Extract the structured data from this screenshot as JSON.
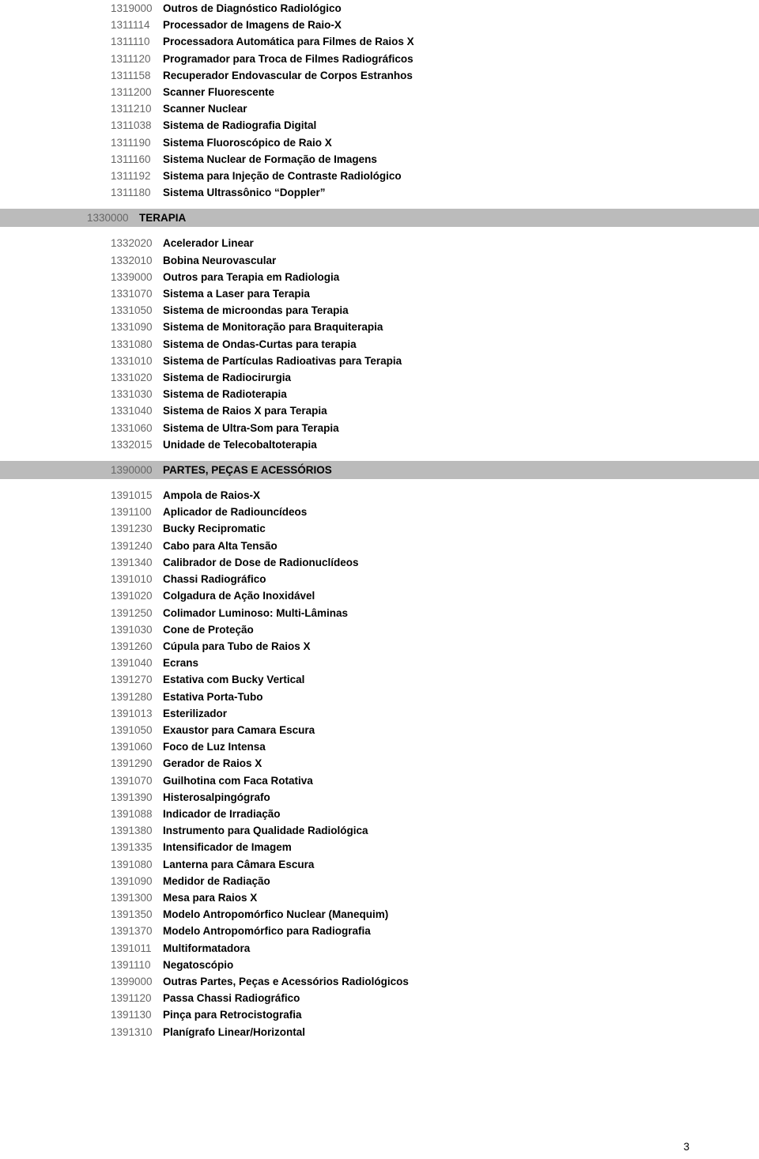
{
  "page_number": "3",
  "colors": {
    "background": "#ffffff",
    "header_bg": "#bbbbbb",
    "code_color": "#666666",
    "desc_color": "#000000"
  },
  "fonts": {
    "family": "Arial",
    "code_size_pt": 10,
    "desc_size_pt": 10,
    "desc_weight": "bold"
  },
  "sections": [
    {
      "header": null,
      "items": [
        {
          "code": "1319000",
          "desc": "Outros de Diagnóstico Radiológico"
        },
        {
          "code": "1311114",
          "desc": "Processador de Imagens de Raio-X"
        },
        {
          "code": "1311110",
          "desc": "Processadora Automática para Filmes de Raios X"
        },
        {
          "code": "1311120",
          "desc": "Programador para Troca de Filmes Radiográficos"
        },
        {
          "code": "1311158",
          "desc": "Recuperador Endovascular de Corpos Estranhos"
        },
        {
          "code": "1311200",
          "desc": "Scanner Fluorescente"
        },
        {
          "code": "1311210",
          "desc": "Scanner Nuclear"
        },
        {
          "code": "1311038",
          "desc": "Sistema de Radiografia Digital"
        },
        {
          "code": "1311190",
          "desc": "Sistema Fluoroscópico de Raio X"
        },
        {
          "code": "1311160",
          "desc": "Sistema Nuclear de Formação de Imagens"
        },
        {
          "code": "1311192",
          "desc": "Sistema para Injeção de Contraste Radiológico"
        },
        {
          "code": "1311180",
          "desc": "Sistema Ultrassônico “Doppler”"
        }
      ]
    },
    {
      "header": {
        "code": "1330000",
        "desc": "TERAPIA",
        "wide": true
      },
      "items": [
        {
          "code": "1332020",
          "desc": "Acelerador Linear"
        },
        {
          "code": "1332010",
          "desc": "Bobina Neurovascular"
        },
        {
          "code": "1339000",
          "desc": "Outros para Terapia em Radiologia"
        },
        {
          "code": "1331070",
          "desc": "Sistema a Laser para Terapia"
        },
        {
          "code": "1331050",
          "desc": "Sistema de microondas para Terapia"
        },
        {
          "code": "1331090",
          "desc": "Sistema de Monitoração para Braquiterapia"
        },
        {
          "code": "1331080",
          "desc": "Sistema de Ondas-Curtas para terapia"
        },
        {
          "code": "1331010",
          "desc": "Sistema de Partículas Radioativas para Terapia"
        },
        {
          "code": "1331020",
          "desc": "Sistema de Radiocirurgia"
        },
        {
          "code": "1331030",
          "desc": "Sistema de Radioterapia"
        },
        {
          "code": "1331040",
          "desc": "Sistema de Raios X para Terapia"
        },
        {
          "code": "1331060",
          "desc": "Sistema de Ultra-Som para Terapia"
        },
        {
          "code": "1332015",
          "desc": "Unidade de Telecobaltoterapia"
        }
      ]
    },
    {
      "header": {
        "code": "1390000",
        "desc": "PARTES, PEÇAS  E ACESSÓRIOS",
        "wide": false
      },
      "items": [
        {
          "code": "1391015",
          "desc": "Ampola de Raios-X"
        },
        {
          "code": "1391100",
          "desc": "Aplicador de Radiouncídeos"
        },
        {
          "code": "1391230",
          "desc": "Bucky  Recipromatic"
        },
        {
          "code": "1391240",
          "desc": "Cabo para Alta Tensão"
        },
        {
          "code": "1391340",
          "desc": "Calibrador de Dose de Radionuclídeos"
        },
        {
          "code": "1391010",
          "desc": "Chassi Radiográfico"
        },
        {
          "code": "1391020",
          "desc": "Colgadura de Ação Inoxidável"
        },
        {
          "code": "1391250",
          "desc": "Colimador Luminoso: Multi-Lâminas"
        },
        {
          "code": "1391030",
          "desc": "Cone de Proteção"
        },
        {
          "code": "1391260",
          "desc": "Cúpula para Tubo de Raios X"
        },
        {
          "code": "1391040",
          "desc": "Ecrans"
        },
        {
          "code": "1391270",
          "desc": "Estativa com Bucky Vertical"
        },
        {
          "code": "1391280",
          "desc": "Estativa Porta-Tubo"
        },
        {
          "code": "1391013",
          "desc": "Esterilizador"
        },
        {
          "code": "1391050",
          "desc": "Exaustor para Camara Escura"
        },
        {
          "code": "1391060",
          "desc": "Foco de Luz Intensa"
        },
        {
          "code": "1391290",
          "desc": "Gerador de Raios X"
        },
        {
          "code": "1391070",
          "desc": "Guilhotina com Faca  Rotativa"
        },
        {
          "code": "1391390",
          "desc": "Histerosalpingógrafo"
        },
        {
          "code": "1391088",
          "desc": "Indicador de Irradiação"
        },
        {
          "code": "1391380",
          "desc": "Instrumento para Qualidade Radiológica"
        },
        {
          "code": "1391335",
          "desc": "Intensificador de Imagem"
        },
        {
          "code": "1391080",
          "desc": "Lanterna para Câmara Escura"
        },
        {
          "code": "1391090",
          "desc": "Medidor de Radiação"
        },
        {
          "code": "1391300",
          "desc": "Mesa para Raios X"
        },
        {
          "code": "1391350",
          "desc": "Modelo Antropomórfico Nuclear (Manequim)"
        },
        {
          "code": "1391370",
          "desc": "Modelo Antropomórfico para Radiografia"
        },
        {
          "code": "1391011",
          "desc": "Multiformatadora"
        },
        {
          "code": "1391110",
          "desc": "Negatoscópio"
        },
        {
          "code": "1399000",
          "desc": "Outras Partes, Peças e Acessórios Radiológicos"
        },
        {
          "code": "1391120",
          "desc": "Passa Chassi Radiográfico"
        },
        {
          "code": "1391130",
          "desc": "Pinça para Retrocistografia"
        },
        {
          "code": "1391310",
          "desc": "Planígrafo Linear/Horizontal"
        }
      ]
    }
  ]
}
